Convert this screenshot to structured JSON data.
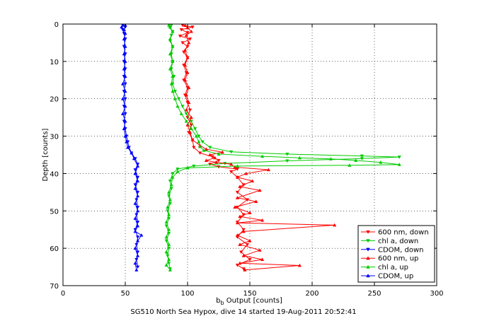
{
  "chart_data": {
    "type": "line",
    "title": "",
    "caption": "SG510 North Sea Hypox, dive 14 started 19-Aug-2011 20:52:41",
    "xlabel_main": "b",
    "xlabel_sub": "b",
    "xlabel_rest": " Output [counts]",
    "ylabel": "Depth [counts]",
    "xlim": [
      0,
      300
    ],
    "ylim": [
      0,
      70
    ],
    "y_reversed": true,
    "grid": true,
    "x_ticks": [
      0,
      50,
      100,
      150,
      200,
      250,
      300
    ],
    "y_ticks": [
      0,
      10,
      20,
      30,
      40,
      50,
      60,
      70
    ],
    "legend_position": "bottom-right",
    "series": [
      {
        "name": "600 nm, down",
        "color": "#ff0000",
        "marker": "triangle-down",
        "points": [
          [
            96,
            0.3
          ],
          [
            104,
            0.8
          ],
          [
            95,
            1.5
          ],
          [
            100,
            2.3
          ],
          [
            94,
            3.2
          ],
          [
            102,
            4.0
          ],
          [
            96,
            5.0
          ],
          [
            100,
            6.0
          ],
          [
            97,
            7.5
          ],
          [
            100,
            9.0
          ],
          [
            97,
            11
          ],
          [
            99,
            13
          ],
          [
            97,
            15
          ],
          [
            100,
            17
          ],
          [
            98,
            19
          ],
          [
            100,
            21
          ],
          [
            102,
            23
          ],
          [
            100,
            25
          ],
          [
            103,
            27
          ],
          [
            101,
            29
          ],
          [
            104,
            31
          ],
          [
            105,
            33
          ],
          [
            110,
            34.5
          ],
          [
            120,
            35.5
          ],
          [
            125,
            36.5
          ],
          [
            118,
            37.5
          ],
          [
            125,
            38.2
          ],
          [
            140,
            38.8
          ],
          [
            135,
            39.5
          ],
          [
            140,
            41
          ],
          [
            145,
            43
          ],
          [
            140,
            45
          ],
          [
            148,
            47
          ],
          [
            140,
            49
          ],
          [
            145,
            51
          ],
          [
            140,
            53
          ],
          [
            145,
            55
          ],
          [
            140,
            57
          ],
          [
            148,
            59
          ],
          [
            143,
            61
          ],
          [
            150,
            63
          ],
          [
            140,
            64.5
          ],
          [
            145,
            65.5
          ]
        ]
      },
      {
        "name": "chl a, down",
        "color": "#00cc00",
        "marker": "triangle-down",
        "points": [
          [
            87,
            0.3
          ],
          [
            86,
            1.0
          ],
          [
            88,
            2.0
          ],
          [
            87,
            3.0
          ],
          [
            86,
            4.5
          ],
          [
            88,
            6.0
          ],
          [
            87,
            8
          ],
          [
            88,
            10
          ],
          [
            87,
            12
          ],
          [
            89,
            14
          ],
          [
            88,
            16
          ],
          [
            90,
            18
          ],
          [
            93,
            20
          ],
          [
            96,
            22
          ],
          [
            99,
            24
          ],
          [
            103,
            26
          ],
          [
            106,
            28
          ],
          [
            109,
            30
          ],
          [
            112,
            31.5
          ],
          [
            118,
            33
          ],
          [
            135,
            34.2
          ],
          [
            180,
            34.8
          ],
          [
            240,
            35.3
          ],
          [
            270,
            35.6
          ],
          [
            240,
            36.0
          ],
          [
            180,
            36.6
          ],
          [
            130,
            37.3
          ],
          [
            105,
            38.0
          ],
          [
            92,
            38.8
          ],
          [
            88,
            40
          ],
          [
            86,
            42
          ],
          [
            87,
            44
          ],
          [
            85,
            46
          ],
          [
            86,
            48
          ],
          [
            84,
            50
          ],
          [
            85,
            52
          ],
          [
            83,
            54
          ],
          [
            85,
            56
          ],
          [
            83,
            58
          ],
          [
            85,
            60
          ],
          [
            84,
            62
          ],
          [
            85,
            64
          ],
          [
            86,
            65.5
          ]
        ]
      },
      {
        "name": "CDOM, down",
        "color": "#0000ff",
        "marker": "triangle-down",
        "points": [
          [
            48,
            0.3
          ],
          [
            50,
            0.8
          ],
          [
            48,
            1.5
          ],
          [
            49,
            2.5
          ],
          [
            50,
            4
          ],
          [
            49,
            6
          ],
          [
            50,
            8
          ],
          [
            49,
            10
          ],
          [
            50,
            12
          ],
          [
            49,
            14
          ],
          [
            50,
            16
          ],
          [
            49,
            18
          ],
          [
            50,
            20
          ],
          [
            49,
            22
          ],
          [
            50,
            24
          ],
          [
            49,
            26
          ],
          [
            50,
            28
          ],
          [
            51,
            30
          ],
          [
            52,
            31.5
          ],
          [
            53,
            33
          ],
          [
            55,
            34.5
          ],
          [
            58,
            36
          ],
          [
            60,
            37.5
          ],
          [
            58,
            39
          ],
          [
            60,
            41
          ],
          [
            58,
            43
          ],
          [
            60,
            45
          ],
          [
            59,
            47
          ],
          [
            60,
            49
          ],
          [
            59,
            51
          ],
          [
            60,
            53
          ],
          [
            58,
            55
          ],
          [
            60,
            57
          ],
          [
            59,
            59
          ],
          [
            60,
            61
          ],
          [
            59,
            63
          ],
          [
            60,
            65
          ]
        ]
      },
      {
        "name": "600 nm, up",
        "color": "#ff0000",
        "marker": "triangle-up",
        "points": [
          [
            146,
            65.8
          ],
          [
            190,
            64.6
          ],
          [
            142,
            64
          ],
          [
            160,
            63
          ],
          [
            145,
            62
          ],
          [
            158,
            60.5
          ],
          [
            142,
            59
          ],
          [
            150,
            58
          ],
          [
            140,
            56.5
          ],
          [
            145,
            55.5
          ],
          [
            218,
            53.8
          ],
          [
            140,
            53.2
          ],
          [
            160,
            52.5
          ],
          [
            142,
            51.5
          ],
          [
            150,
            50.5
          ],
          [
            138,
            49
          ],
          [
            155,
            47.5
          ],
          [
            140,
            46.5
          ],
          [
            158,
            44.5
          ],
          [
            142,
            43.5
          ],
          [
            152,
            42
          ],
          [
            140,
            41
          ],
          [
            147,
            40
          ],
          [
            165,
            39
          ],
          [
            138,
            38.3
          ],
          [
            135,
            37.5
          ],
          [
            123,
            37
          ],
          [
            115,
            36.5
          ],
          [
            122,
            35.8
          ],
          [
            118,
            35
          ],
          [
            128,
            34.3
          ],
          [
            115,
            33.5
          ],
          [
            110,
            32.5
          ],
          [
            104,
            31
          ],
          [
            102,
            29
          ],
          [
            100,
            27
          ],
          [
            103,
            25
          ],
          [
            99,
            23
          ],
          [
            101,
            21
          ],
          [
            99,
            19
          ],
          [
            101,
            17
          ],
          [
            98,
            15
          ],
          [
            100,
            13
          ],
          [
            98,
            11
          ],
          [
            100,
            9
          ],
          [
            98,
            7
          ],
          [
            101,
            5
          ],
          [
            99,
            3
          ],
          [
            103,
            2
          ],
          [
            100,
            1
          ],
          [
            98,
            0.4
          ]
        ]
      },
      {
        "name": "chl a, up",
        "color": "#00cc00",
        "marker": "triangle-up",
        "points": [
          [
            86,
            65.8
          ],
          [
            83,
            64.5
          ],
          [
            85,
            63
          ],
          [
            83,
            61
          ],
          [
            85,
            59
          ],
          [
            83,
            57
          ],
          [
            85,
            55
          ],
          [
            83,
            53
          ],
          [
            85,
            51
          ],
          [
            84,
            49
          ],
          [
            86,
            47
          ],
          [
            85,
            45
          ],
          [
            87,
            43
          ],
          [
            88,
            41
          ],
          [
            92,
            39.5
          ],
          [
            100,
            38.5
          ],
          [
            140,
            38.0
          ],
          [
            230,
            37.8
          ],
          [
            270,
            37.6
          ],
          [
            255,
            37
          ],
          [
            235,
            36.5
          ],
          [
            215,
            36.1
          ],
          [
            190,
            35.8
          ],
          [
            160,
            35.4
          ],
          [
            125,
            34.8
          ],
          [
            113,
            33.8
          ],
          [
            110,
            32.8
          ],
          [
            109,
            31.5
          ],
          [
            107,
            30
          ],
          [
            103,
            28
          ],
          [
            99,
            26
          ],
          [
            95,
            24
          ],
          [
            92,
            22
          ],
          [
            90,
            20
          ],
          [
            88,
            18
          ],
          [
            87,
            16
          ],
          [
            88,
            14
          ],
          [
            86,
            12
          ],
          [
            88,
            10
          ],
          [
            86,
            8
          ],
          [
            88,
            6
          ],
          [
            86,
            4
          ],
          [
            88,
            2
          ],
          [
            86,
            0.8
          ],
          [
            85,
            0.3
          ]
        ]
      },
      {
        "name": "CDOM, up",
        "color": "#0000ff",
        "marker": "triangle-up",
        "points": [
          [
            59,
            65.8
          ],
          [
            58,
            64
          ],
          [
            60,
            62
          ],
          [
            58,
            60
          ],
          [
            60,
            58
          ],
          [
            63,
            56.5
          ],
          [
            58,
            55.5
          ],
          [
            60,
            54
          ],
          [
            58,
            52
          ],
          [
            60,
            50
          ],
          [
            58,
            48
          ],
          [
            60,
            46
          ],
          [
            58,
            44
          ],
          [
            60,
            42
          ],
          [
            58,
            40
          ],
          [
            60,
            38
          ],
          [
            57,
            36
          ],
          [
            55,
            34.5
          ],
          [
            52,
            33
          ],
          [
            51,
            31.5
          ],
          [
            50,
            30
          ],
          [
            49,
            28
          ],
          [
            50,
            26
          ],
          [
            48,
            24
          ],
          [
            50,
            22
          ],
          [
            48,
            20
          ],
          [
            50,
            18
          ],
          [
            48,
            16
          ],
          [
            50,
            14
          ],
          [
            49,
            12
          ],
          [
            50,
            10
          ],
          [
            49,
            8
          ],
          [
            50,
            6
          ],
          [
            49,
            4
          ],
          [
            50,
            2.5
          ],
          [
            49,
            1.5
          ],
          [
            47,
            0.8
          ],
          [
            50,
            0.3
          ]
        ]
      }
    ]
  }
}
